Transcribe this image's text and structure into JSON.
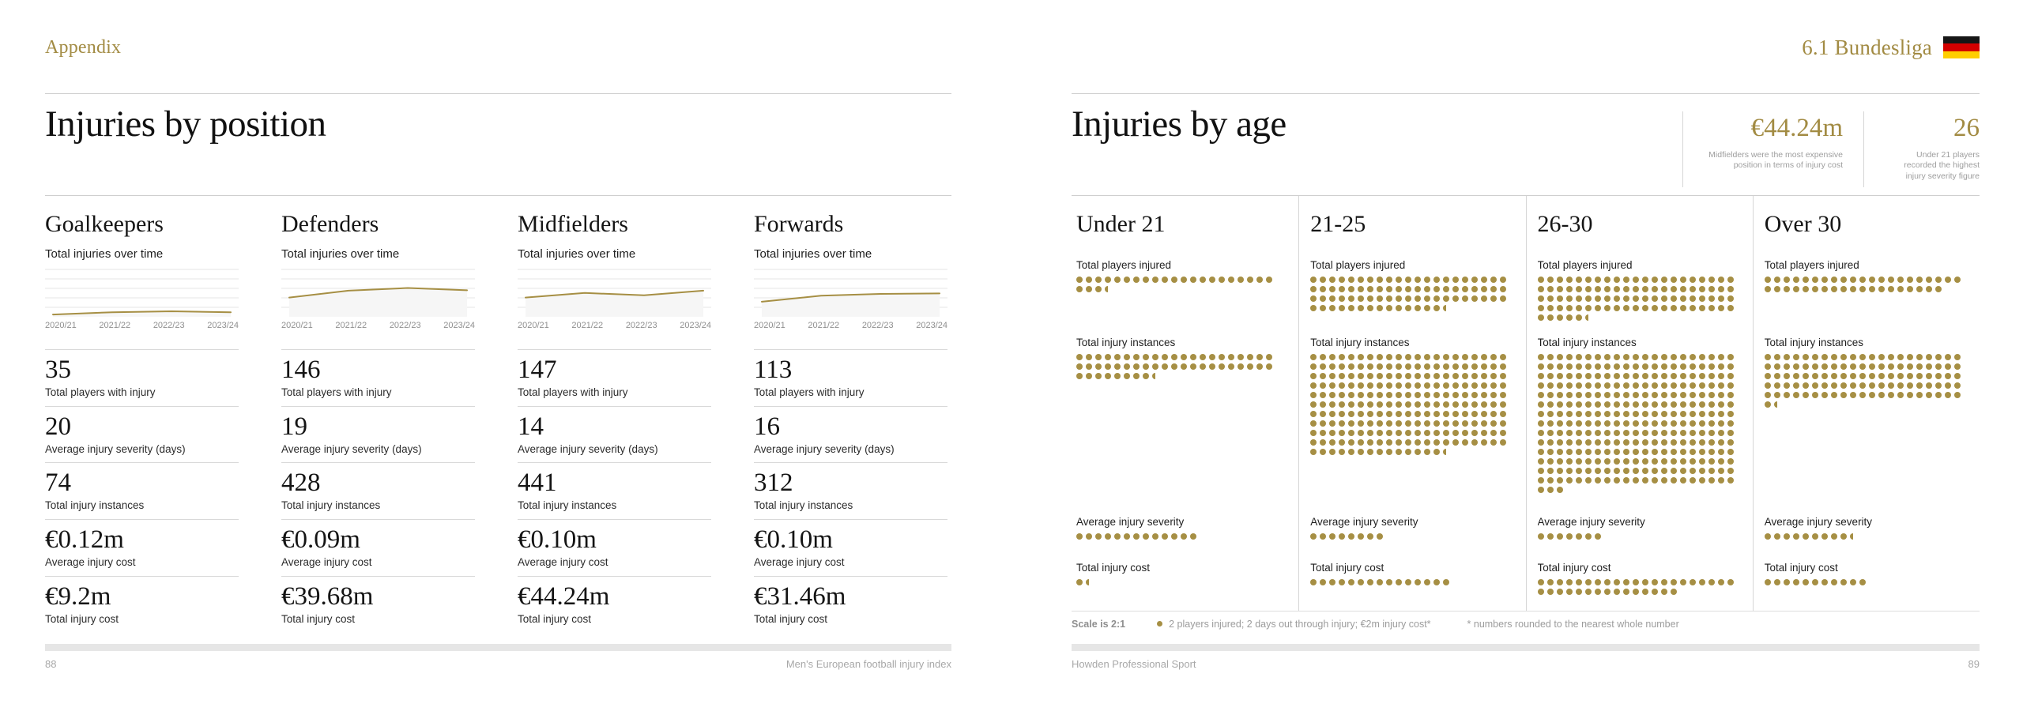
{
  "left_page": {
    "eyebrow": "Appendix",
    "title": "Injuries by position",
    "chart_label": "Total injuries over time",
    "years": [
      "2020/21",
      "2021/22",
      "2022/23",
      "2023/24"
    ],
    "columns": [
      {
        "name": "Goalkeepers",
        "spark": [
          0.05,
          0.1,
          0.12,
          0.1
        ],
        "stats": [
          {
            "value": "35",
            "label": "Total players with injury"
          },
          {
            "value": "20",
            "label": "Average injury severity (days)"
          },
          {
            "value": "74",
            "label": "Total injury instances"
          },
          {
            "value": "€0.12m",
            "label": "Average injury cost"
          },
          {
            "value": "€9.2m",
            "label": "Total injury cost"
          }
        ]
      },
      {
        "name": "Defenders",
        "spark": [
          0.42,
          0.57,
          0.63,
          0.58
        ],
        "stats": [
          {
            "value": "146",
            "label": "Total players with injury"
          },
          {
            "value": "19",
            "label": "Average injury severity (days)"
          },
          {
            "value": "428",
            "label": "Total injury instances"
          },
          {
            "value": "€0.09m",
            "label": "Average injury cost"
          },
          {
            "value": "€39.68m",
            "label": "Total injury cost"
          }
        ]
      },
      {
        "name": "Midfielders",
        "spark": [
          0.42,
          0.52,
          0.47,
          0.57
        ],
        "stats": [
          {
            "value": "147",
            "label": "Total players with injury"
          },
          {
            "value": "14",
            "label": "Average injury severity (days)"
          },
          {
            "value": "441",
            "label": "Total injury instances"
          },
          {
            "value": "€0.10m",
            "label": "Average injury cost"
          },
          {
            "value": "€44.24m",
            "label": "Total injury cost"
          }
        ]
      },
      {
        "name": "Forwards",
        "spark": [
          0.33,
          0.46,
          0.5,
          0.51
        ],
        "stats": [
          {
            "value": "113",
            "label": "Total players with injury"
          },
          {
            "value": "16",
            "label": "Average injury severity (days)"
          },
          {
            "value": "312",
            "label": "Total injury instances"
          },
          {
            "value": "€0.10m",
            "label": "Average injury cost"
          },
          {
            "value": "€31.46m",
            "label": "Total injury cost"
          }
        ]
      }
    ],
    "footer": {
      "page_number": "88",
      "text": "Men's European football injury index"
    }
  },
  "right_page": {
    "eyebrow": "6.1 Bundesliga",
    "flag": "germany-flag",
    "title": "Injuries by age",
    "callouts": [
      {
        "value": "€44.24m",
        "caption": "Midfielders were the most expensive position in terms of injury cost"
      },
      {
        "value": "26",
        "caption": "Under 21 players recorded the highest injury severity figure"
      }
    ],
    "section_labels": {
      "players": "Total players injured",
      "instances": "Total injury instances",
      "severity": "Average injury severity",
      "cost": "Total injury cost"
    },
    "columns": [
      {
        "name": "Under 21",
        "players_dots": 24.5,
        "instances_dots": 50.5,
        "severity_dots": 13,
        "cost_dots": 1.5
      },
      {
        "name": "21-25",
        "players_dots": 77.5,
        "instances_dots": 224.5,
        "severity_dots": 8,
        "cost_dots": 15
      },
      {
        "name": "26-30",
        "players_dots": 89.5,
        "instances_dots": 297,
        "severity_dots": 7,
        "cost_dots": 36
      },
      {
        "name": "Over 30",
        "players_dots": 40,
        "instances_dots": 106.5,
        "severity_dots": 9.5,
        "cost_dots": 11
      }
    ],
    "legend": {
      "scale": "Scale is 2:1",
      "dot_text": "2 players injured; 2 days out through injury; €2m injury cost*",
      "footnote": "* numbers rounded to the nearest whole number"
    },
    "footer": {
      "text": "Howden Professional Sport",
      "page_number": "89"
    }
  },
  "colors": {
    "gold_text": "#a28b43",
    "gold_dot": "#a68f44",
    "flag_black": "#161616",
    "flag_red": "#d40000",
    "flag_gold": "#ffce00"
  },
  "chart_data": [
    {
      "type": "line",
      "title": "Total injuries over time",
      "x": [
        "2020/21",
        "2021/22",
        "2022/23",
        "2023/24"
      ],
      "series": [
        {
          "name": "Goalkeepers",
          "values_relative": [
            0.05,
            0.1,
            0.12,
            0.1
          ]
        },
        {
          "name": "Defenders",
          "values_relative": [
            0.42,
            0.57,
            0.63,
            0.58
          ]
        },
        {
          "name": "Midfielders",
          "values_relative": [
            0.42,
            0.52,
            0.47,
            0.57
          ]
        },
        {
          "name": "Forwards",
          "values_relative": [
            0.33,
            0.46,
            0.5,
            0.51
          ]
        }
      ],
      "ylabel": "",
      "grid": true,
      "legend_position": "none"
    },
    {
      "type": "dot-matrix",
      "title": "Injuries by age",
      "scale": "1 dot = 2 units (scale 2:1)",
      "categories": [
        "Under 21",
        "21-25",
        "26-30",
        "Over 30"
      ],
      "total_players_injured": [
        49,
        155,
        179,
        80
      ],
      "total_injury_instances": [
        101,
        449,
        594,
        213
      ],
      "average_injury_severity_days": [
        26,
        16,
        14,
        19
      ],
      "total_injury_cost_eur_m": [
        3,
        30,
        72,
        22
      ]
    }
  ]
}
